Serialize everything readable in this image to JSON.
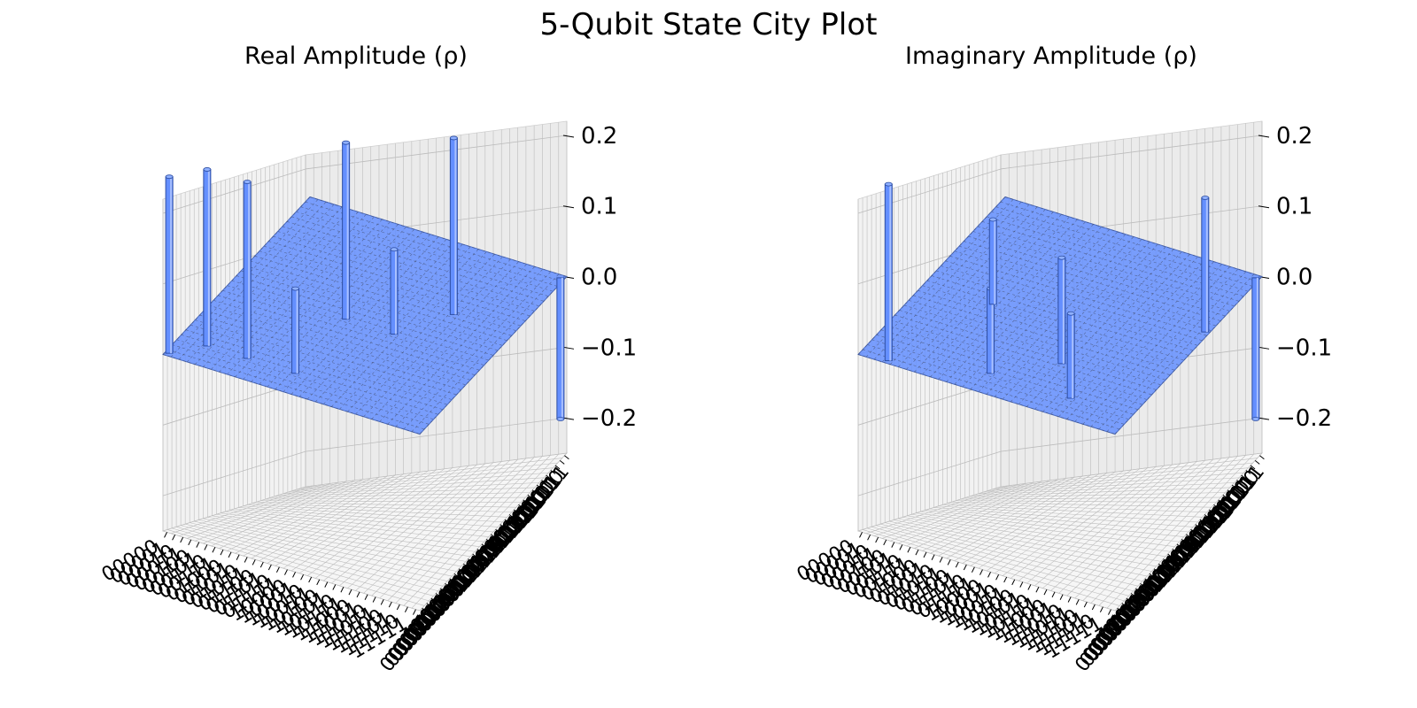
{
  "figure": {
    "suptitle": "5-Qubit State City Plot"
  },
  "colors": {
    "bar": "#648fff",
    "bar_dark": "#2f4f9a",
    "pane": "#f2f2f2",
    "grid": "#bcbcbc"
  },
  "chart_data": [
    {
      "type": "bar3d",
      "title": "Real Amplitude (ρ)",
      "zlim": [
        -0.25,
        0.22
      ],
      "zticks": [
        "0.2",
        "0.1",
        "0.0",
        "−0.1",
        "−0.2"
      ],
      "zticks_values": [
        0.2,
        0.1,
        0.0,
        -0.1,
        -0.2
      ],
      "xticklabels": [
        "00000",
        "00001",
        "00010",
        "00011",
        "00100",
        "00101",
        "00110",
        "00111",
        "01000",
        "01001",
        "01010",
        "01011",
        "01100",
        "01101",
        "01110",
        "01111",
        "10000",
        "10001",
        "10010",
        "10011",
        "10100",
        "10101",
        "10110",
        "10111",
        "11000",
        "11001",
        "11010",
        "11011",
        "11100",
        "11101",
        "11110",
        "11111"
      ],
      "yticklabels": [
        "00000",
        "00001",
        "00010",
        "00011",
        "00100",
        "00101",
        "00110",
        "00111",
        "01000",
        "01001",
        "01010",
        "01011",
        "01100",
        "01101",
        "01110",
        "01111",
        "10000",
        "10001",
        "10010",
        "10011",
        "10100",
        "10101",
        "10110",
        "10111",
        "11000",
        "11001",
        "11010",
        "11011",
        "11100",
        "11101",
        "11110",
        "11111"
      ],
      "bars": [
        {
          "row": 0,
          "col": 0,
          "value": 0.25
        },
        {
          "row": 3,
          "col": 3,
          "value": 0.25
        },
        {
          "row": 8,
          "col": 3,
          "value": 0.25
        },
        {
          "row": 14,
          "col": 3,
          "value": 0.12
        },
        {
          "row": 14,
          "col": 14,
          "value": 0.25
        },
        {
          "row": 20,
          "col": 14,
          "value": 0.12
        },
        {
          "row": 24,
          "col": 20,
          "value": 0.25
        },
        {
          "row": 31,
          "col": 31,
          "value": -0.2
        }
      ]
    },
    {
      "type": "bar3d",
      "title": "Imaginary Amplitude (ρ)",
      "zlim": [
        -0.25,
        0.22
      ],
      "zticks": [
        "0.2",
        "0.1",
        "0.0",
        "−0.1",
        "−0.2"
      ],
      "zticks_values": [
        0.2,
        0.1,
        0.0,
        -0.1,
        -0.2
      ],
      "xticklabels": [
        "00000",
        "00001",
        "00010",
        "00011",
        "00100",
        "00101",
        "00110",
        "00111",
        "01000",
        "01001",
        "01010",
        "01011",
        "01100",
        "01101",
        "01110",
        "01111",
        "10000",
        "10001",
        "10010",
        "10011",
        "10100",
        "10101",
        "10110",
        "10111",
        "11000",
        "11001",
        "11010",
        "11011",
        "11100",
        "11101",
        "11110",
        "11111"
      ],
      "yticklabels": [
        "00000",
        "00001",
        "00010",
        "00011",
        "00100",
        "00101",
        "00110",
        "00111",
        "01000",
        "01001",
        "01010",
        "01011",
        "01100",
        "01101",
        "01110",
        "01111",
        "10000",
        "10001",
        "10010",
        "10011",
        "10100",
        "10101",
        "10110",
        "10111",
        "11000",
        "11001",
        "11010",
        "11011",
        "11100",
        "11101",
        "11110",
        "11111"
      ],
      "bars": [
        {
          "row": 3,
          "col": 0,
          "value": 0.25
        },
        {
          "row": 14,
          "col": 3,
          "value": 0.12
        },
        {
          "row": 24,
          "col": 3,
          "value": 0.12
        },
        {
          "row": 20,
          "col": 8,
          "value": 0.15
        },
        {
          "row": 8,
          "col": 14,
          "value": 0.12
        },
        {
          "row": 31,
          "col": 20,
          "value": 0.19
        },
        {
          "row": 31,
          "col": 31,
          "value": -0.2
        }
      ]
    }
  ]
}
